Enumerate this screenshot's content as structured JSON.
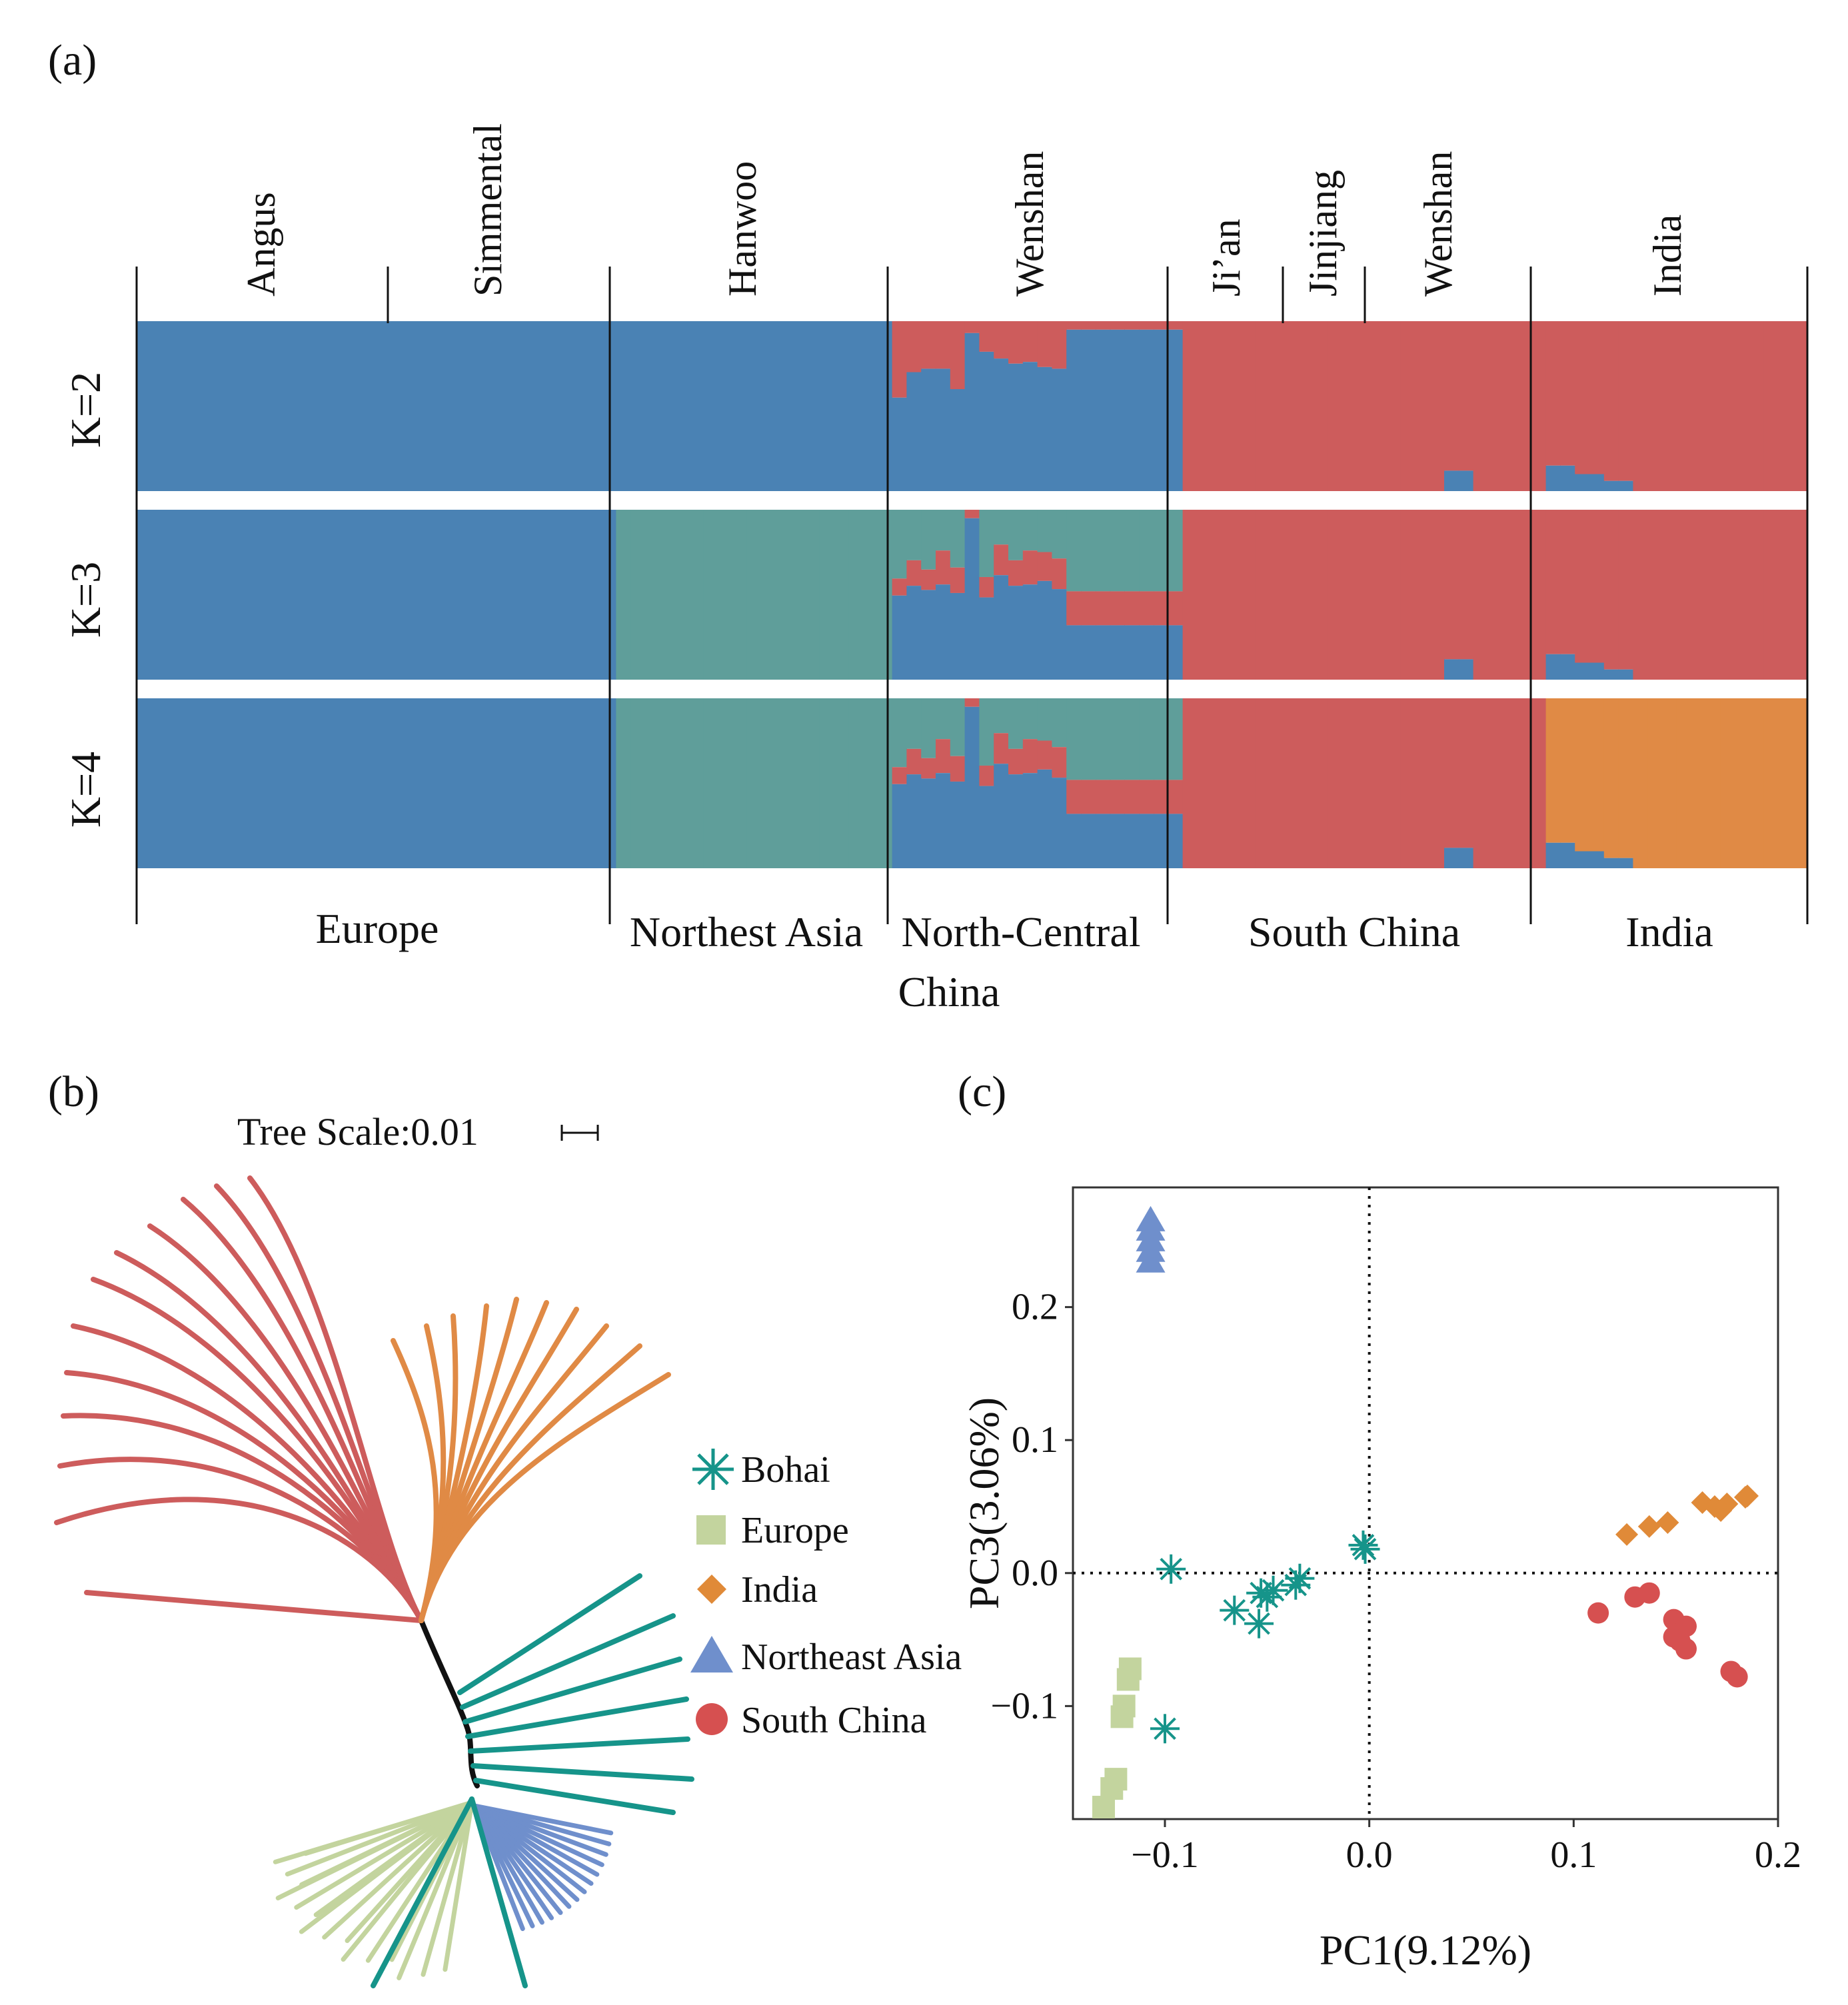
{
  "panels": {
    "a": "(a)",
    "b": "(b)",
    "c": "(c)"
  },
  "colors": {
    "blue": "#4a82b4",
    "teal": "#5f9e9a",
    "red": "#cd5c5c",
    "orange": "#e08a45",
    "tree_black": "#111111",
    "bohai": "#16948a",
    "europe": "#c3d49e",
    "india": "#e08a38",
    "northeast": "#6f8fcc",
    "south": "#d65050"
  },
  "panel_a": {
    "top_labels": [
      "Angus",
      "Simmental",
      "Hanwoo",
      "Wenshan",
      "Ji’an",
      "Jinjiang",
      "Wenshan",
      "India"
    ],
    "row_labels": [
      "K=2",
      "K=3",
      "K=4"
    ],
    "region_labels": [
      "Europe",
      "Northest Asia",
      "North-Central",
      "China",
      "South China",
      "India"
    ]
  },
  "panel_b": {
    "tree_scale": "Tree Scale:0.01",
    "legend": [
      "Bohai",
      "Europe",
      "India",
      "Northeast Asia",
      "South China"
    ],
    "legend_icons": [
      "asterisk-icon",
      "square-icon",
      "diamond-icon",
      "triangle-icon",
      "circle-icon"
    ]
  },
  "chart_data": {
    "type": "scatter",
    "title": "",
    "xlabel": "PC1(9.12%)",
    "ylabel": "PC3(3.06%)",
    "xlim": [
      -0.145,
      0.2
    ],
    "ylim": [
      -0.185,
      0.29
    ],
    "xticks": [
      -0.1,
      0.0,
      0.1,
      0.2
    ],
    "xtick_labels": [
      "−0.1",
      "0.0",
      "0.1",
      "0.2"
    ],
    "yticks": [
      -0.1,
      0.0,
      0.1,
      0.2
    ],
    "ytick_labels": [
      "−0.1",
      "0.0",
      "0.1",
      "0.2"
    ],
    "reference_lines": {
      "x": 0.0,
      "y": 0.0,
      "style": "dotted"
    },
    "legend_placement": "left, outside",
    "series": [
      {
        "name": "Bohai",
        "marker": "asterisk",
        "points": [
          [
            -0.097,
            0.003
          ],
          [
            -0.003,
            0.021
          ],
          [
            -0.002,
            0.018
          ],
          [
            -0.034,
            -0.004
          ],
          [
            -0.036,
            -0.009
          ],
          [
            -0.047,
            -0.013
          ],
          [
            -0.05,
            -0.018
          ],
          [
            -0.053,
            -0.015
          ],
          [
            -0.066,
            -0.028
          ],
          [
            -0.054,
            -0.038
          ],
          [
            -0.1,
            -0.117
          ]
        ]
      },
      {
        "name": "Europe",
        "marker": "square",
        "points": [
          [
            -0.117,
            -0.072
          ],
          [
            -0.118,
            -0.08
          ],
          [
            -0.12,
            -0.1
          ],
          [
            -0.121,
            -0.108
          ],
          [
            -0.124,
            -0.155
          ],
          [
            -0.126,
            -0.162
          ],
          [
            -0.13,
            -0.176
          ]
        ]
      },
      {
        "name": "India",
        "marker": "diamond",
        "points": [
          [
            0.126,
            0.029
          ],
          [
            0.137,
            0.035
          ],
          [
            0.146,
            0.038
          ],
          [
            0.163,
            0.053
          ],
          [
            0.169,
            0.05
          ],
          [
            0.172,
            0.047
          ],
          [
            0.175,
            0.052
          ],
          [
            0.184,
            0.057
          ],
          [
            0.185,
            0.058
          ]
        ]
      },
      {
        "name": "Northeast Asia",
        "marker": "triangle",
        "points": [
          [
            -0.107,
            0.265
          ],
          [
            -0.107,
            0.258
          ],
          [
            -0.107,
            0.25
          ],
          [
            -0.107,
            0.242
          ],
          [
            -0.107,
            0.234
          ]
        ]
      },
      {
        "name": "South China",
        "marker": "circle",
        "points": [
          [
            0.112,
            -0.03
          ],
          [
            0.13,
            -0.018
          ],
          [
            0.137,
            -0.015
          ],
          [
            0.149,
            -0.035
          ],
          [
            0.155,
            -0.04
          ],
          [
            0.149,
            -0.048
          ],
          [
            0.152,
            -0.051
          ],
          [
            0.155,
            -0.057
          ],
          [
            0.177,
            -0.074
          ],
          [
            0.18,
            -0.078
          ]
        ]
      }
    ]
  }
}
